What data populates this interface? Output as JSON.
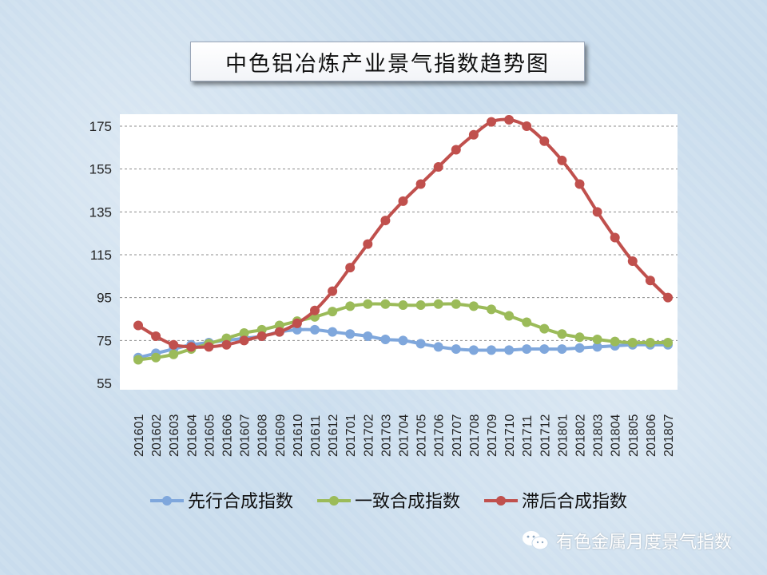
{
  "title": "中色铝冶炼产业景气指数趋势图",
  "watermark": "有色金属月度景气指数",
  "chart_data": {
    "type": "line",
    "x": [
      "201601",
      "201602",
      "201603",
      "201604",
      "201605",
      "201606",
      "201607",
      "201608",
      "201609",
      "201610",
      "201611",
      "201612",
      "201701",
      "201702",
      "201703",
      "201704",
      "201705",
      "201706",
      "201707",
      "201708",
      "201709",
      "201710",
      "201711",
      "201712",
      "201801",
      "201802",
      "201803",
      "201804",
      "201805",
      "201806",
      "201807"
    ],
    "yticks": [
      55,
      75,
      95,
      115,
      135,
      155,
      175
    ],
    "ylim": [
      55,
      178
    ],
    "grid": "horizontal-dashed",
    "legend_position": "bottom",
    "series": [
      {
        "name": "先行合成指数",
        "color": "#7fa7dc",
        "values": [
          67,
          69,
          71,
          73,
          74,
          75,
          76,
          77,
          79,
          80,
          80,
          79,
          78,
          77,
          75.5,
          75,
          73.5,
          72,
          71,
          70.5,
          70.5,
          70.5,
          71,
          71,
          71,
          71.5,
          72,
          72.5,
          73,
          73,
          73
        ]
      },
      {
        "name": "一致合成指数",
        "color": "#9bbb59",
        "values": [
          66,
          67,
          68.5,
          71,
          73.5,
          76,
          78.5,
          80,
          82,
          84,
          86,
          88.5,
          91,
          92,
          92,
          91.5,
          91.5,
          92,
          92,
          91,
          89.5,
          86.5,
          83.5,
          80.5,
          78,
          76.5,
          75.5,
          74.5,
          74,
          74,
          74
        ]
      },
      {
        "name": "滞后合成指数",
        "color": "#c0504d",
        "values": [
          82,
          77,
          73,
          72,
          72,
          73,
          75,
          77,
          79,
          83,
          89,
          98,
          109,
          120,
          131,
          140,
          148,
          156,
          164,
          171,
          177,
          178,
          175,
          168,
          159,
          148,
          135,
          123,
          112,
          103,
          95
        ]
      }
    ]
  }
}
